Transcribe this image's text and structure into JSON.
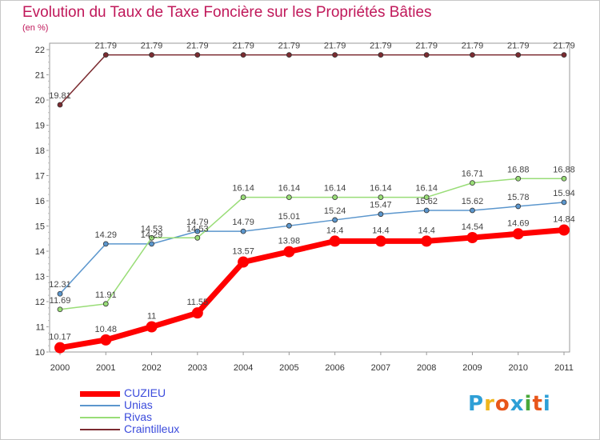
{
  "title": "Evolution du Taux de Taxe Foncière sur les Propriétés Bâties",
  "unit": "(en %)",
  "logo": {
    "text": "Proxiti",
    "colors": [
      "#2e9fd6",
      "#f0b51c",
      "#e8561a",
      "#2e9fd6",
      "#49a83a",
      "#e8561a",
      "#2e9fd6"
    ]
  },
  "chart_data": {
    "type": "line",
    "title": "Evolution du Taux de Taxe Foncière sur les Propriétés Bâties",
    "ylabel": "(en %)",
    "xlabel": "",
    "x": [
      "2000",
      "2001",
      "2002",
      "2003",
      "2004",
      "2005",
      "2006",
      "2007",
      "2008",
      "2009",
      "2010",
      "2011"
    ],
    "ylim": [
      10,
      22
    ],
    "yticks": [
      10,
      11,
      12,
      13,
      14,
      15,
      16,
      17,
      18,
      19,
      20,
      21,
      22
    ],
    "grid": false,
    "series": [
      {
        "name": "CUZIEU",
        "color": "#ff0000",
        "values": [
          10.17,
          10.48,
          11,
          11.55,
          13.57,
          13.98,
          14.4,
          14.4,
          14.4,
          14.54,
          14.69,
          14.84
        ]
      },
      {
        "name": "Unias",
        "color": "#5b96cd",
        "values": [
          12.31,
          14.29,
          14.29,
          14.79,
          14.79,
          15.01,
          15.24,
          15.47,
          15.62,
          15.62,
          15.78,
          15.94
        ]
      },
      {
        "name": "Rivas",
        "color": "#99dd77",
        "values": [
          11.69,
          11.91,
          14.53,
          14.53,
          16.14,
          16.14,
          16.14,
          16.14,
          16.14,
          16.71,
          16.88,
          16.88
        ]
      },
      {
        "name": "Craintilleux",
        "color": "#7b2b30",
        "values": [
          19.81,
          21.79,
          21.79,
          21.79,
          21.79,
          21.79,
          21.79,
          21.79,
          21.79,
          21.79,
          21.79,
          21.79
        ]
      }
    ]
  }
}
